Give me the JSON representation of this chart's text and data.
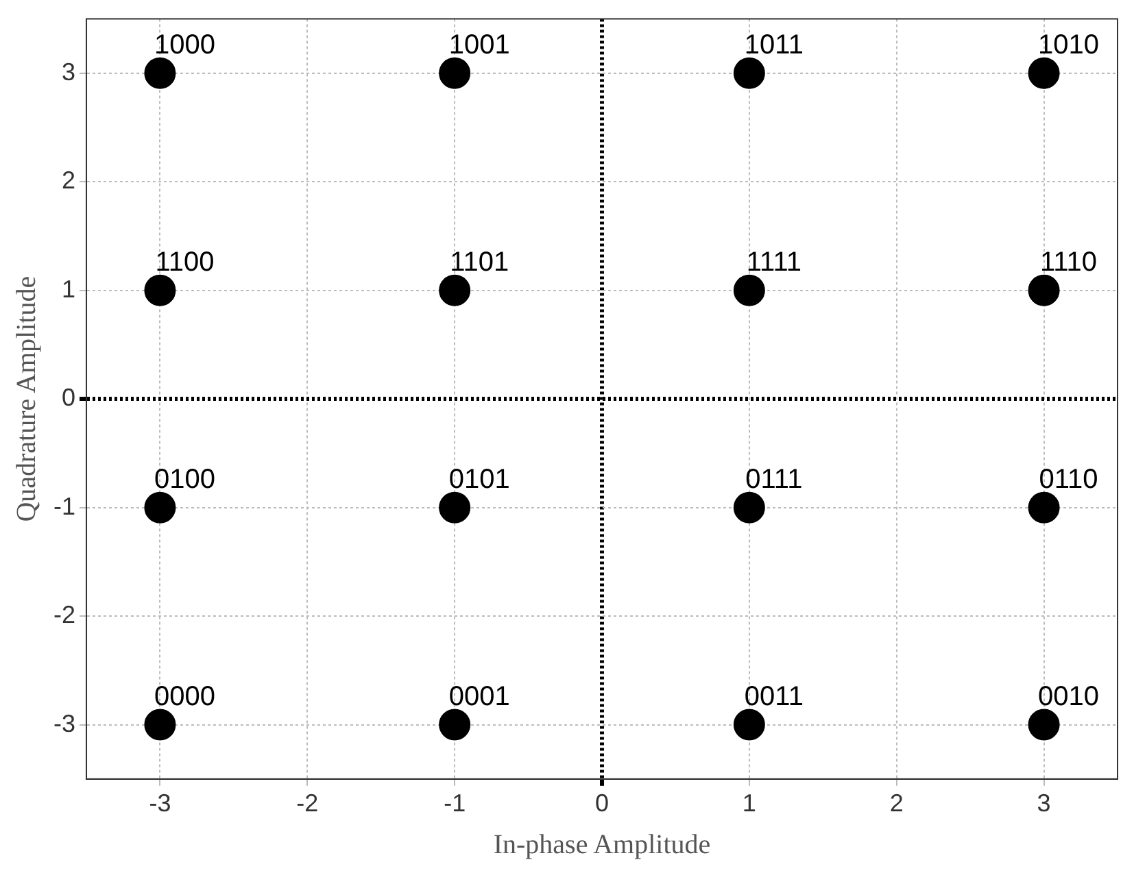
{
  "chart_data": {
    "type": "scatter",
    "xlabel": "In-phase Amplitude",
    "ylabel": "Quadrature Amplitude",
    "x": [
      -3,
      -1,
      1,
      3,
      -3,
      -1,
      1,
      3,
      -3,
      -1,
      1,
      3,
      -3,
      -1,
      1,
      3
    ],
    "series": [
      {
        "color": "#000000",
        "values": [
          3,
          3,
          3,
          3,
          1,
          1,
          1,
          1,
          -1,
          -1,
          -1,
          -1,
          -3,
          -3,
          -3,
          -3
        ]
      }
    ],
    "marker": "circle",
    "grid": true,
    "legend": false,
    "xlim": [
      -3.5,
      3.5
    ],
    "xticks": [
      -3,
      -2,
      -1,
      0,
      1,
      2,
      3
    ],
    "ylim": [
      -3.5,
      3.5
    ],
    "yticks": [
      -3,
      -2,
      -1,
      0,
      1,
      2,
      3
    ],
    "annotations": [
      {
        "text": "1000",
        "x": -3,
        "y": 3
      },
      {
        "text": "1001",
        "x": -1,
        "y": 3
      },
      {
        "text": "1011",
        "x": 1,
        "y": 3
      },
      {
        "text": "1010",
        "x": 3,
        "y": 3
      },
      {
        "text": "1100",
        "x": -3,
        "y": 1
      },
      {
        "text": "1101",
        "x": -1,
        "y": 1
      },
      {
        "text": "1111",
        "x": 1,
        "y": 1
      },
      {
        "text": "1110",
        "x": 3,
        "y": 1
      },
      {
        "text": "0100",
        "x": -3,
        "y": -1
      },
      {
        "text": "0101",
        "x": -1,
        "y": -1
      },
      {
        "text": "0111",
        "x": 1,
        "y": -1
      },
      {
        "text": "0110",
        "x": 3,
        "y": -1
      },
      {
        "text": "0000",
        "x": -3,
        "y": -3
      },
      {
        "text": "0001",
        "x": -1,
        "y": -3
      },
      {
        "text": "0011",
        "x": 1,
        "y": -3
      },
      {
        "text": "0010",
        "x": 3,
        "y": -3
      }
    ]
  }
}
